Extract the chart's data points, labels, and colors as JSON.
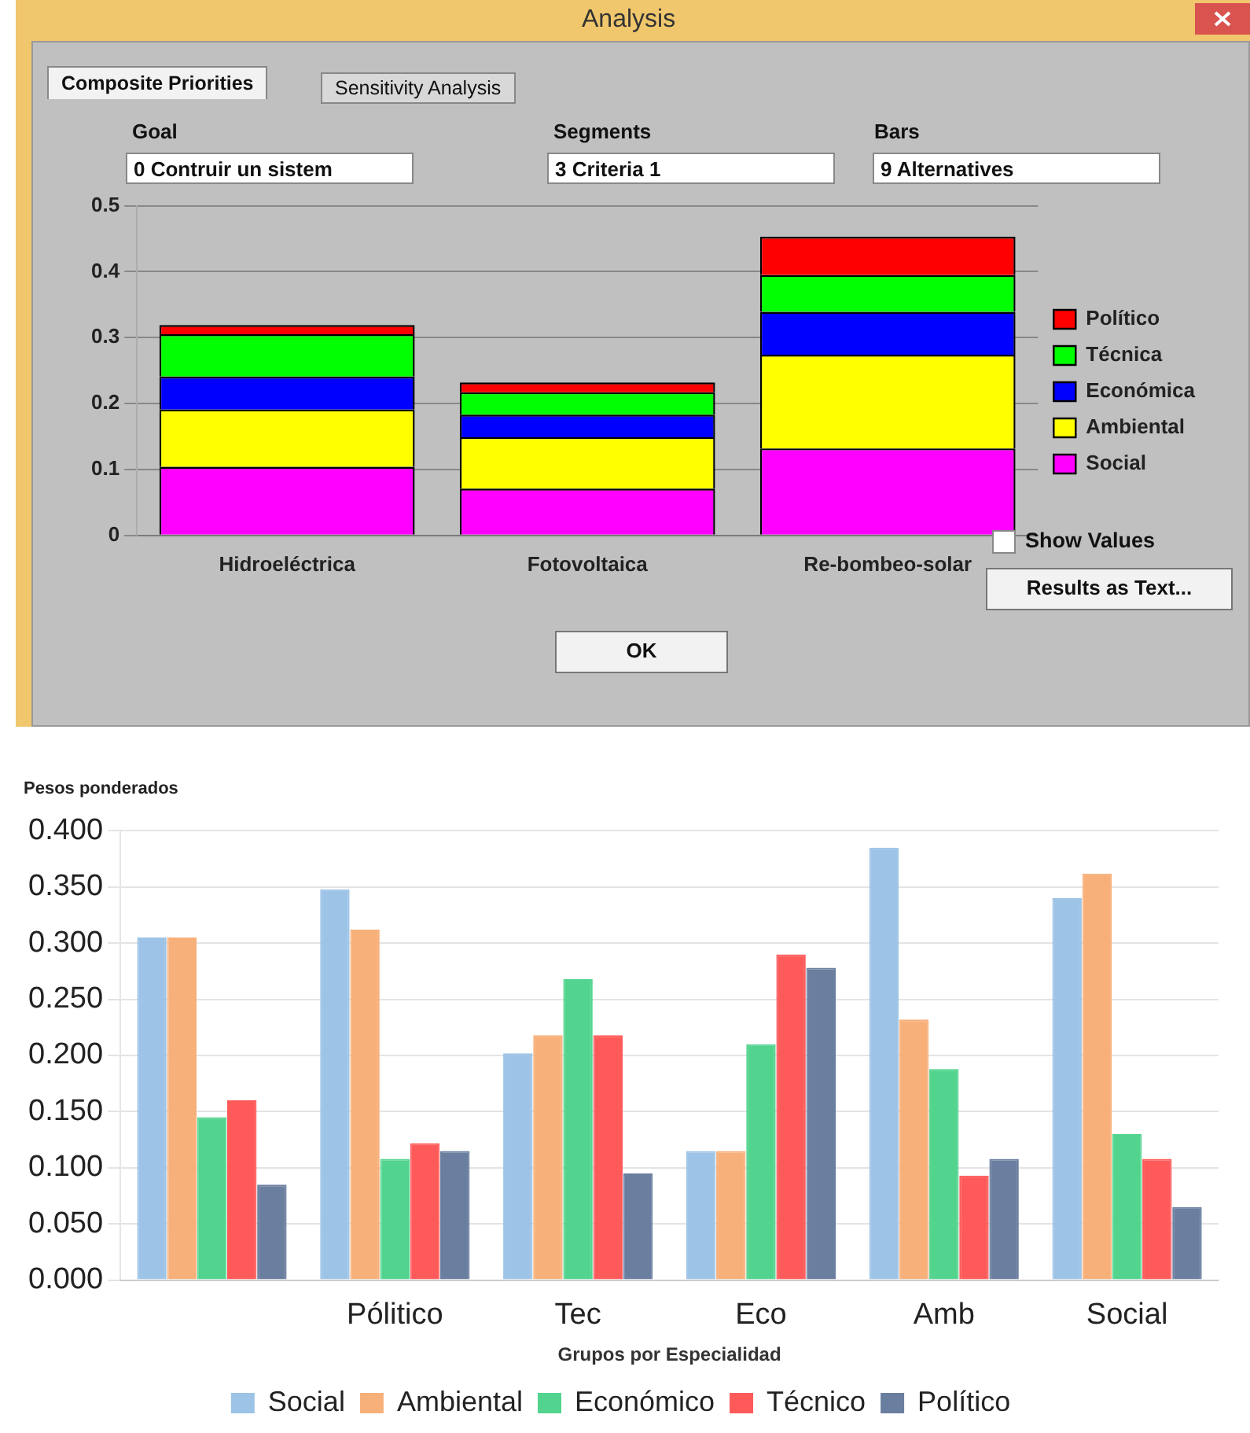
{
  "chart_data": [
    {
      "type": "bar",
      "title": "Analysis",
      "stacked": true,
      "categories": [
        "Hidroeléctrica",
        "Fotovoltaica",
        "Re-bombeo-solar"
      ],
      "series": [
        {
          "name": "Social",
          "color": "#ff00ff",
          "values": [
            0.104,
            0.071,
            0.132
          ]
        },
        {
          "name": "Ambiental",
          "color": "#ffff00",
          "values": [
            0.087,
            0.078,
            0.142
          ]
        },
        {
          "name": "Económica",
          "color": "#0000ff",
          "values": [
            0.05,
            0.034,
            0.065
          ]
        },
        {
          "name": "Técnica",
          "color": "#00ff00",
          "values": [
            0.064,
            0.034,
            0.056
          ]
        },
        {
          "name": "Político",
          "color": "#ff0000",
          "values": [
            0.014,
            0.015,
            0.058
          ]
        }
      ],
      "ylim": [
        0,
        0.5
      ],
      "yticks": [
        0,
        0.1,
        0.2,
        0.3,
        0.4,
        0.5
      ],
      "grid": "y",
      "legend": "right",
      "annotations": [
        "Composite Priorities",
        "Sensitivity Analysis",
        "Goal",
        "0 Contruir un sistem",
        "Segments",
        "3 Criteria 1",
        "Bars",
        "9 Alternatives",
        "Show Values",
        "Results as Text...",
        "OK"
      ]
    },
    {
      "type": "bar",
      "title": "Pesos ponderados",
      "xlabel": "Grupos por Especialidad",
      "categories": [
        null,
        "Pólitico",
        "Tec",
        "Eco",
        "Amb",
        "Social"
      ],
      "series": [
        {
          "name": "Social",
          "color": "#9dc3e6",
          "values": [
            0.305,
            0.348,
            0.202,
            0.115,
            0.385,
            0.34
          ]
        },
        {
          "name": "Ambiental",
          "color": "#f8b07a",
          "values": [
            0.305,
            0.312,
            0.218,
            0.115,
            0.232,
            0.362
          ]
        },
        {
          "name": "Económico",
          "color": "#52d48e",
          "values": [
            0.145,
            0.108,
            0.268,
            0.21,
            0.188,
            0.13
          ]
        },
        {
          "name": "Técnico",
          "color": "#ff5a5a",
          "values": [
            0.16,
            0.122,
            0.218,
            0.29,
            0.093,
            0.108
          ]
        },
        {
          "name": "Político",
          "color": "#6a7e9f",
          "values": [
            0.085,
            0.115,
            0.095,
            0.278,
            0.108,
            0.065
          ]
        }
      ],
      "ylim": [
        0,
        0.4
      ],
      "yticks": [
        {
          "value": 0,
          "label": "0.000"
        },
        {
          "value": 0.05,
          "label": "0.050"
        },
        {
          "value": 0.1,
          "label": "0.100"
        },
        {
          "value": 0.15,
          "label": "0.150"
        },
        {
          "value": 0.2,
          "label": "0.200"
        },
        {
          "value": 0.25,
          "label": "0.250"
        },
        {
          "value": 0.3,
          "label": "0.300"
        },
        {
          "value": 0.35,
          "label": "0.350"
        },
        {
          "value": 0.4,
          "label": "0.400"
        }
      ],
      "grid": "y",
      "legend": "bottom"
    }
  ]
}
